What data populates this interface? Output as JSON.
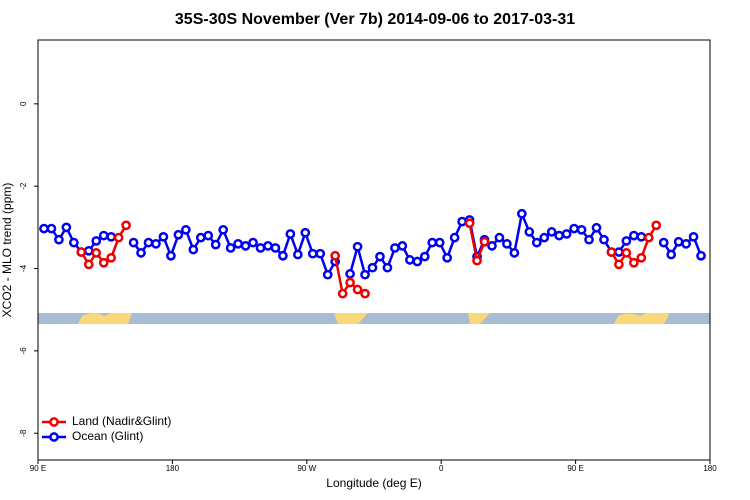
{
  "chart_data": {
    "type": "line",
    "title": "35S-30S November (Ver 7b)   2014-09-06 to 2017-03-31",
    "xlabel": "Longitude (deg E)",
    "ylabel": "XCO2 - MLO trend (ppm)",
    "x": [
      94,
      99,
      104,
      109,
      114,
      119,
      124,
      129,
      134,
      139,
      144,
      149,
      154,
      159,
      164,
      169,
      174,
      179,
      184,
      189,
      194,
      199,
      204,
      209,
      214,
      219,
      224,
      229,
      234,
      239,
      244,
      249,
      254,
      259,
      264,
      269,
      274,
      279,
      284,
      289,
      294,
      299,
      304,
      309,
      314,
      319,
      324,
      329,
      334,
      339,
      344,
      349,
      354,
      359,
      364,
      369,
      374,
      379,
      384,
      389,
      394,
      399,
      404,
      409,
      414,
      419,
      424,
      429,
      434,
      439,
      444,
      449,
      454,
      459,
      464,
      469,
      474,
      479,
      484,
      489,
      494,
      499,
      504,
      509,
      514,
      519,
      524,
      529,
      534
    ],
    "series": [
      {
        "name": "Ocean (Glint)",
        "color": "#0000ee",
        "values": [
          -3.03,
          -3.03,
          -3.3,
          -3.0,
          -3.37,
          -3.6,
          -3.57,
          -3.33,
          -3.2,
          -3.23,
          null,
          null,
          -3.37,
          -3.62,
          -3.37,
          -3.4,
          -3.23,
          -3.69,
          -3.18,
          -3.06,
          -3.54,
          -3.25,
          -3.2,
          -3.42,
          -3.06,
          -3.5,
          -3.4,
          -3.45,
          -3.37,
          -3.5,
          -3.45,
          -3.5,
          -3.69,
          -3.16,
          -3.66,
          -3.13,
          -3.64,
          -3.64,
          -4.15,
          -3.83,
          null,
          -4.13,
          -3.47,
          -4.15,
          -3.98,
          -3.71,
          -3.98,
          -3.5,
          -3.45,
          -3.79,
          -3.83,
          -3.71,
          -3.37,
          -3.37,
          -3.74,
          -3.25,
          -2.86,
          -2.82,
          -3.71,
          -3.3,
          -3.45,
          -3.25,
          -3.4,
          -3.62,
          -2.67,
          -3.11,
          -3.37,
          -3.25,
          -3.11,
          -3.2,
          -3.16,
          -3.03,
          -3.06,
          -3.3,
          -3.01,
          -3.3,
          -3.6,
          -3.6,
          -3.33,
          -3.2,
          -3.23,
          null,
          null,
          -3.37,
          -3.66,
          -3.35,
          -3.4,
          -3.23,
          -3.69
        ]
      },
      {
        "name": "Land (Nadir&Glint)",
        "color": "#ee0000",
        "values": [
          null,
          null,
          null,
          null,
          null,
          -3.6,
          -3.9,
          -3.62,
          -3.86,
          -3.74,
          -3.25,
          -2.95,
          null,
          null,
          null,
          null,
          null,
          null,
          null,
          null,
          null,
          null,
          null,
          null,
          null,
          null,
          null,
          null,
          null,
          null,
          null,
          null,
          null,
          null,
          null,
          null,
          null,
          null,
          null,
          -3.69,
          -4.61,
          -4.34,
          -4.51,
          -4.61,
          null,
          null,
          null,
          null,
          null,
          null,
          null,
          null,
          null,
          null,
          null,
          null,
          null,
          -2.9,
          -3.81,
          -3.35,
          null,
          null,
          null,
          null,
          null,
          null,
          null,
          null,
          null,
          null,
          null,
          null,
          null,
          null,
          null,
          null,
          -3.6,
          -3.9,
          -3.62,
          -3.86,
          -3.74,
          -3.25,
          -2.95,
          null,
          null,
          null,
          null,
          null,
          null
        ]
      }
    ],
    "xlim": [
      90,
      540
    ],
    "xticks": [
      {
        "value": 90,
        "label": "90 E"
      },
      180,
      {
        "value": 270,
        "label": "90 W"
      },
      {
        "value": 360,
        "label": "0"
      },
      {
        "value": 450,
        "label": "90 E"
      },
      {
        "value": 540,
        "label": "180"
      }
    ],
    "ylim": [
      -8.65,
      1.55
    ],
    "yticks": [
      0,
      -2,
      -4,
      -6,
      -8
    ],
    "legend": "bottom-left"
  }
}
